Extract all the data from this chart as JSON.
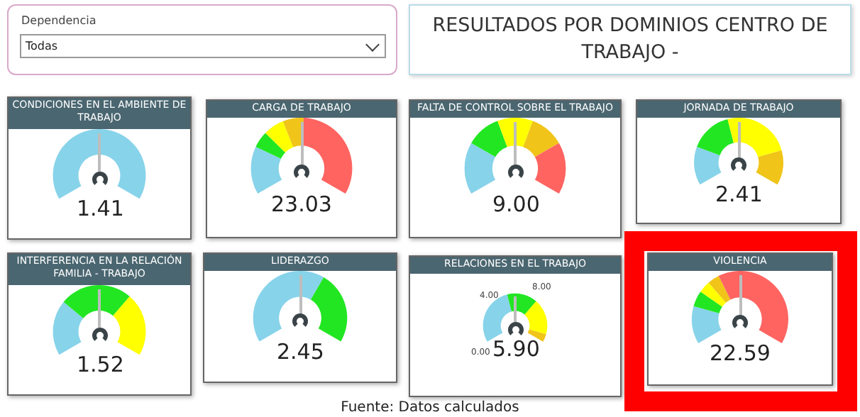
{
  "chart_data": [
    {
      "type": "other",
      "title": "RESULTADOS POR DOMINIOS CENTRO DE TRABAJO -",
      "annotations": [
        "Dependencia",
        "Todas",
        "Fuente: Datos calculados"
      ]
    },
    {
      "type": "pie",
      "title": "CONDICIONES EN EL AMBIENTE DE TRABAJO",
      "categories": [
        null
      ],
      "values": [
        100
      ],
      "colors": [
        "#87d3ea"
      ],
      "annotations": [
        "1.41"
      ]
    },
    {
      "type": "donut",
      "title": "CARGA DE TRABAJO",
      "categories": [
        null,
        null,
        null,
        null,
        null
      ],
      "values": [
        23,
        8,
        10,
        10,
        49
      ],
      "colors": [
        "#87d3ea",
        "#22e622",
        "#ffff00",
        "#f0c419",
        "#ff6461"
      ],
      "annotations": [
        "23.03"
      ]
    },
    {
      "type": "donut",
      "title": "FALTA DE CONTROL SOBRE EL TRABAJO",
      "categories": [
        null,
        null,
        null,
        null,
        null
      ],
      "values": [
        25,
        16.5,
        17,
        16.5,
        25
      ],
      "colors": [
        "#87d3ea",
        "#22e622",
        "#ffff00",
        "#f0c419",
        "#ff6461"
      ],
      "annotations": [
        "9.00"
      ]
    },
    {
      "type": "donut",
      "title": "JORNADA DE TRABAJO",
      "categories": [
        null,
        null,
        null,
        null
      ],
      "values": [
        21,
        23,
        37,
        19
      ],
      "colors": [
        "#87d3ea",
        "#22e622",
        "#ffff00",
        "#f0c419"
      ],
      "annotations": [
        "2.41"
      ]
    },
    {
      "type": "donut",
      "title": "INTERFERENCIA EN LA RELACIÓN FAMILIA - TRABAJO",
      "categories": [
        null,
        null,
        null
      ],
      "values": [
        29,
        38,
        33
      ],
      "colors": [
        "#87d3ea",
        "#22e622",
        "#ffff00"
      ],
      "annotations": [
        "1.52"
      ]
    },
    {
      "type": "donut",
      "title": "LIDERAZGO",
      "categories": [
        null,
        null
      ],
      "values": [
        62.5,
        37.5
      ],
      "colors": [
        "#87d3ea",
        "#22e622"
      ],
      "annotations": [
        "2.45"
      ]
    },
    {
      "type": "donut",
      "title": "RELACIONES EN EL TRABAJO",
      "categories": [
        null,
        null,
        null,
        null
      ],
      "values": [
        44,
        23,
        27,
        6
      ],
      "colors": [
        "#87d3ea",
        "#22e622",
        "#ffff00",
        "#f0c419"
      ],
      "annotations": [
        "5.90",
        "0.00",
        "4.00",
        "8.00"
      ]
    },
    {
      "type": "donut",
      "title": "VIOLENCIA",
      "categories": [
        null,
        null,
        null,
        null,
        null
      ],
      "values": [
        19,
        8,
        6,
        6,
        61
      ],
      "colors": [
        "#87d3ea",
        "#22e622",
        "#ffff00",
        "#f0c419",
        "#ff6461"
      ],
      "annotations": [
        "22.59"
      ]
    }
  ]
}
